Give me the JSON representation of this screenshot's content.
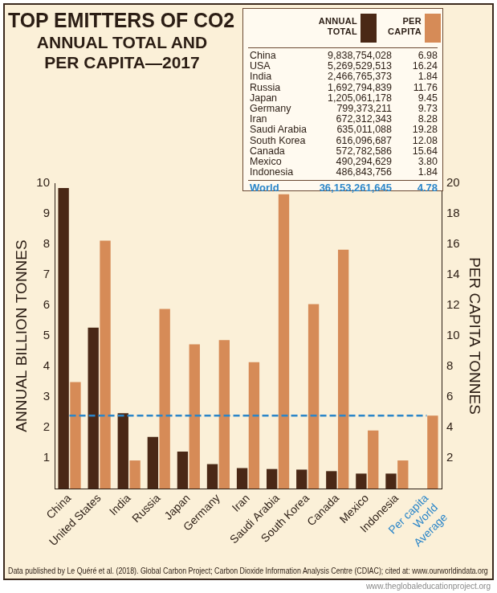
{
  "chart_data": {
    "type": "bar",
    "title": "TOP EMITTERS OF CO2",
    "subtitle": [
      "ANNUAL TOTAL AND",
      "PER CAPITA—2017"
    ],
    "categories": [
      "China",
      "United States",
      "India",
      "Russia",
      "Japan",
      "Germany",
      "Iran",
      "Saudi Arabia",
      "South Korea",
      "Canada",
      "Mexico",
      "Indonesia",
      "Per capita World Average"
    ],
    "series": [
      {
        "name": "ANNUAL TOTAL",
        "color": "#4a2816",
        "values": [
          9.84,
          5.27,
          2.47,
          1.69,
          1.21,
          0.8,
          0.67,
          0.64,
          0.62,
          0.57,
          0.49,
          0.49,
          null
        ]
      },
      {
        "name": "PER CAPITA",
        "color": "#d68b57",
        "axis": "y2",
        "values": [
          6.98,
          16.24,
          1.84,
          11.76,
          9.45,
          9.73,
          8.28,
          19.28,
          12.08,
          15.64,
          3.8,
          1.84,
          4.78
        ]
      }
    ],
    "ylabel": "ANNUAL BILLION TONNES",
    "y2label": "PER CAPITA TONNES",
    "ylim": [
      0,
      10
    ],
    "yticks": [
      1,
      2,
      3,
      4,
      5,
      6,
      7,
      8,
      9,
      10
    ],
    "y2lim": [
      0,
      20
    ],
    "y2ticks": [
      2,
      4,
      6,
      8,
      10,
      12,
      14,
      16,
      18,
      20
    ],
    "grid": false,
    "reference_line": {
      "value": 4.78,
      "axis": "y2",
      "color": "#2b86c9",
      "line_style": "dashed"
    },
    "source": "Data published by Le Quéré et al. (2018). Global Carbon Project; Carbon Dioxide Information Analysis Centre (CDIAC); cited at: www.ourworldindata.org",
    "credit": "www.theglobaleducationproject.org"
  },
  "table": {
    "rows": [
      {
        "country": "China",
        "total": "9,838,754,028",
        "per_capita": "6.98"
      },
      {
        "country": "USA",
        "total": "5,269,529,513",
        "per_capita": "16.24"
      },
      {
        "country": "India",
        "total": "2,466,765,373",
        "per_capita": "1.84"
      },
      {
        "country": "Russia",
        "total": "1,692,794,839",
        "per_capita": "11.76"
      },
      {
        "country": "Japan",
        "total": "1,205,061,178",
        "per_capita": "9.45"
      },
      {
        "country": "Germany",
        "total": "799,373,211",
        "per_capita": "9.73"
      },
      {
        "country": "Iran",
        "total": "672,312,343",
        "per_capita": "8.28"
      },
      {
        "country": "Saudi Arabia",
        "total": "635,011,088",
        "per_capita": "19.28"
      },
      {
        "country": "South Korea",
        "total": "616,096,687",
        "per_capita": "12.08"
      },
      {
        "country": "Canada",
        "total": "572,782,586",
        "per_capita": "15.64"
      },
      {
        "country": "Mexico",
        "total": "490,294,629",
        "per_capita": "3.80"
      },
      {
        "country": "Indonesia",
        "total": "486,843,756",
        "per_capita": "1.84"
      }
    ],
    "world": {
      "country": "World",
      "total": "36,153,261,645",
      "per_capita": "4.78"
    }
  }
}
